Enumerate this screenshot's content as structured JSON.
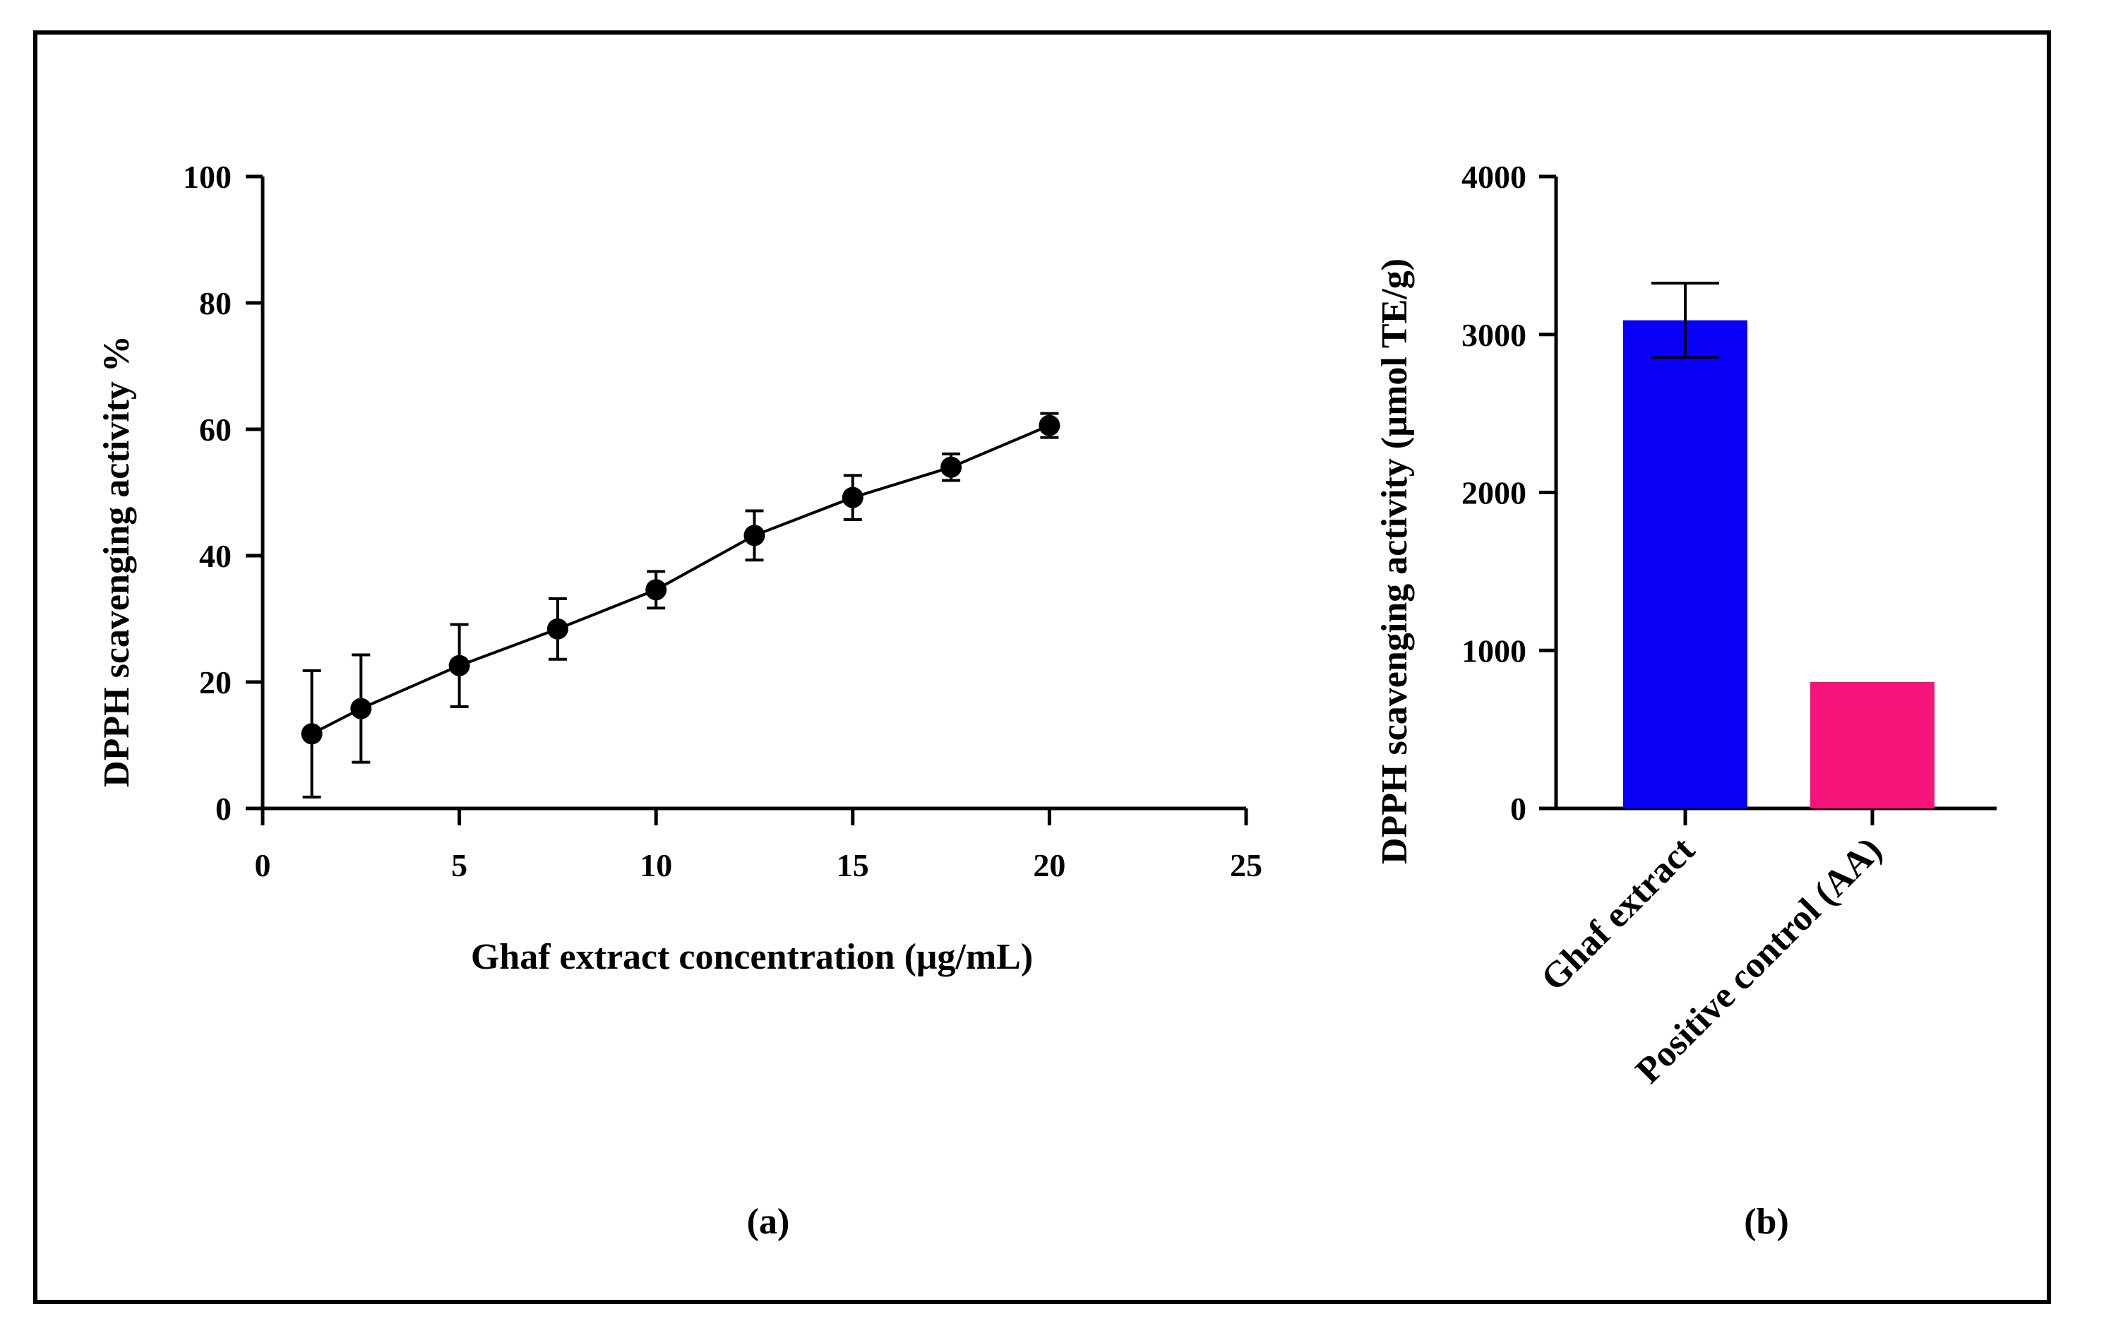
{
  "chart_data": [
    {
      "panel": "(a)",
      "type": "line",
      "xlabel": "Ghaf extract concentration (μg/mL)",
      "ylabel": "DPPH scavenging activity %",
      "xlim": [
        0,
        25
      ],
      "ylim": [
        0,
        100
      ],
      "xticks": [
        "0",
        "5",
        "10",
        "15",
        "20",
        "25"
      ],
      "yticks": [
        "0",
        "20",
        "40",
        "60",
        "80",
        "100"
      ],
      "xtick_values": [
        0,
        5,
        10,
        15,
        20,
        25
      ],
      "ytick_values": [
        0,
        20,
        40,
        60,
        80,
        100
      ],
      "series": [
        {
          "x": [
            1.25,
            2.5,
            5,
            7.5,
            10,
            12.5,
            15,
            17.5,
            20
          ],
          "y": [
            11.8,
            15.8,
            22.6,
            28.4,
            34.6,
            43.2,
            49.2,
            54.0,
            60.6
          ],
          "err": [
            10.0,
            8.5,
            6.5,
            4.8,
            2.9,
            3.9,
            3.5,
            2.1,
            1.9
          ],
          "color": "#000000"
        }
      ],
      "grid": false
    },
    {
      "panel": "(b)",
      "type": "bar",
      "ylabel": "DPPH scavenging activity (µmol TE/g)",
      "ylim": [
        0,
        4000
      ],
      "yticks": [
        "0",
        "1000",
        "2000",
        "3000",
        "4000"
      ],
      "ytick_values": [
        0,
        1000,
        2000,
        3000,
        4000
      ],
      "categories": [
        "Ghaf extract",
        "Positive control (AA)"
      ],
      "values": [
        3090,
        800
      ],
      "err": [
        235,
        null
      ],
      "colors": [
        "#0a00f5",
        "#f5147a"
      ],
      "grid": false
    }
  ]
}
